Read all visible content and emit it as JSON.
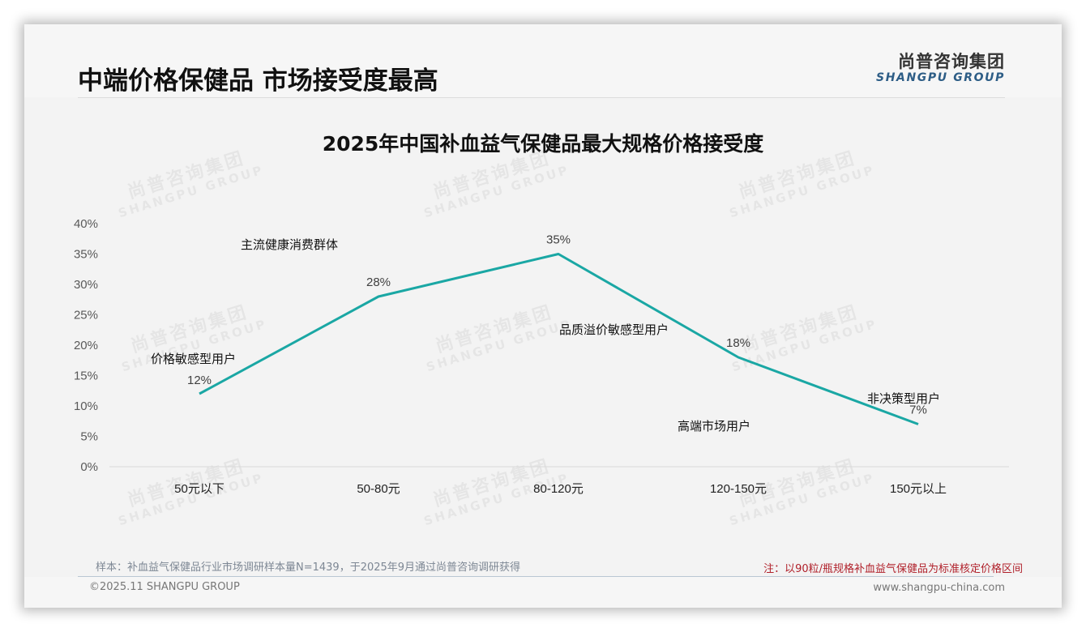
{
  "header": {
    "title": "中端价格保健品 市场接受度最高",
    "logo_cn": "尚普咨询集团",
    "logo_en": "SHANGPU GROUP"
  },
  "watermark": {
    "cn": "尚普咨询集团",
    "en": "SHANGPU GROUP"
  },
  "chart_data": {
    "type": "line",
    "title": "2025年中国补血益气保健品最大规格价格接受度",
    "categories": [
      "50元以下",
      "50-80元",
      "80-120元",
      "120-150元",
      "150元以上"
    ],
    "values": [
      12,
      28,
      35,
      18,
      7
    ],
    "value_labels": [
      "12%",
      "28%",
      "35%",
      "18%",
      "7%"
    ],
    "series": [
      {
        "name": "价格接受度",
        "values": [
          12,
          28,
          35,
          18,
          7
        ],
        "color": "#1aa7a4"
      }
    ],
    "annotations": [
      "价格敏感型用户",
      "主流健康消费群体",
      "品质溢价敏感型用户",
      "高端市场用户",
      "非决策型用户"
    ],
    "y_ticks": [
      "0%",
      "5%",
      "10%",
      "15%",
      "20%",
      "25%",
      "30%",
      "35%",
      "40%"
    ],
    "ylim": [
      0,
      40
    ],
    "xlabel": "",
    "ylabel": "",
    "grid": false,
    "legend": "none"
  },
  "footer": {
    "sample_note": "样本：补血益气保健品行业市场调研样本量N=1439，于2025年9月通过尚普咨询调研获得",
    "price_note": "注：以90粒/瓶规格补血益气保健品为标准核定价格区间",
    "copyright": "©2025.11 SHANGPU GROUP",
    "website": "www.shangpu-china.com"
  },
  "colors": {
    "line": "#1aa7a4",
    "note_red": "#b0202a",
    "logo_blue": "#2d5d86"
  }
}
